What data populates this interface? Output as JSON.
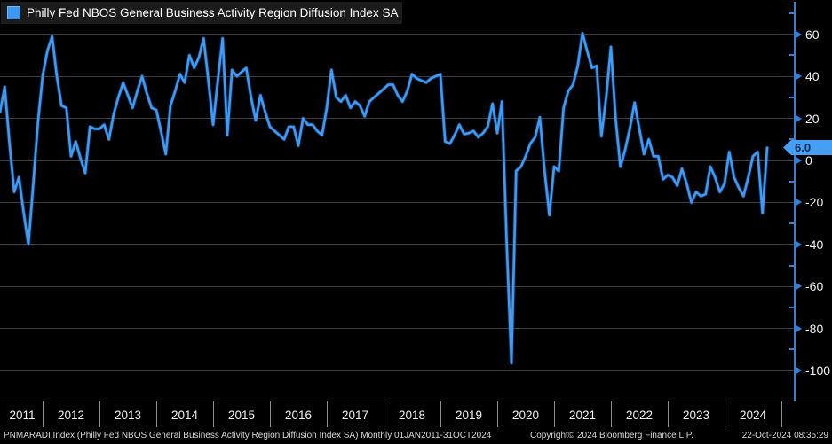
{
  "legend": {
    "label": "Philly Fed NBOS General Business Activity Region Diffusion Index SA",
    "swatch_color": "#3b97f2"
  },
  "colors": {
    "background": "#000000",
    "line": "#3f9bf5",
    "line_halo": "#1c5da8",
    "grid": "#3d3d3d",
    "axis": "#2f82dd",
    "tick_label": "#f2f2f2",
    "badge_bg": "#469ff2",
    "badge_text": "#002a52",
    "legend_bg": "#1b1b1b",
    "footer_text": "#d9d9d9"
  },
  "y_axis": {
    "major_ticks": [
      60,
      40,
      20,
      0,
      -20,
      -40,
      -60,
      -80,
      -100
    ],
    "minor_ticks": [
      70,
      50,
      30,
      10,
      -10,
      -30,
      -50,
      -70,
      -90
    ],
    "last_value_label": "6.0"
  },
  "x_axis": {
    "years": [
      "2011",
      "2012",
      "2013",
      "2014",
      "2015",
      "2016",
      "2017",
      "2018",
      "2019",
      "2020",
      "2021",
      "2022",
      "2023",
      "2024"
    ]
  },
  "footer": {
    "left": "PNMARADI Index (Philly Fed NBOS General Business Activity Region Diffusion Index SA)  Monthly 01JAN2011-31OCT2024",
    "center": "Copyright© 2024 Bloomberg Finance L.P.",
    "right": "22-Oct-2024 08:35:29"
  },
  "chart_data": {
    "type": "line",
    "title": "Philly Fed NBOS General Business Activity Region Diffusion Index SA",
    "frequency": "monthly",
    "x_start": "2011-01",
    "x_end": "2024-10",
    "ylim": [
      -110,
      65
    ],
    "grid": true,
    "legend_position": "top-left",
    "last_value": 6.0,
    "low_value": -96.4,
    "high_value": 60.5,
    "values": [
      18,
      20,
      22,
      23,
      35,
      8,
      -15,
      -8,
      -25,
      -40,
      -12,
      18,
      40,
      52,
      59,
      40,
      26,
      25,
      2,
      9,
      1,
      -6,
      16,
      15,
      15,
      17,
      10,
      22,
      30,
      37,
      31,
      25,
      33,
      40,
      32,
      25,
      24,
      14,
      3,
      26,
      33,
      41,
      37,
      50,
      44,
      49,
      58,
      38,
      17,
      38,
      58,
      12,
      43,
      40,
      42,
      44,
      30,
      19,
      31,
      23,
      16,
      14,
      12,
      10,
      16,
      16,
      7,
      20,
      17,
      17,
      14,
      12,
      25,
      43,
      30,
      28,
      31,
      25,
      28,
      26,
      21,
      28,
      30,
      32,
      34,
      36,
      36,
      31,
      28,
      33,
      41,
      39,
      38,
      37,
      39,
      40,
      41,
      9,
      8,
      12,
      17,
      12.5,
      13,
      14,
      11,
      13,
      16,
      27,
      13,
      28,
      -40,
      -96.4,
      -5,
      -3,
      2,
      8,
      11,
      20.5,
      -5,
      -26,
      -3,
      -5,
      25,
      33,
      36,
      45,
      60.5,
      52,
      44,
      45,
      11.5,
      30,
      54,
      20,
      -3,
      5,
      15,
      27.5,
      15,
      3,
      10,
      2,
      2,
      -9,
      -7,
      -8,
      -12,
      -4,
      -11,
      -20,
      -15,
      -17,
      -16,
      -3,
      -8,
      -15,
      -11,
      4,
      -8,
      -13,
      -17,
      -8,
      2,
      4,
      -25,
      6
    ]
  }
}
